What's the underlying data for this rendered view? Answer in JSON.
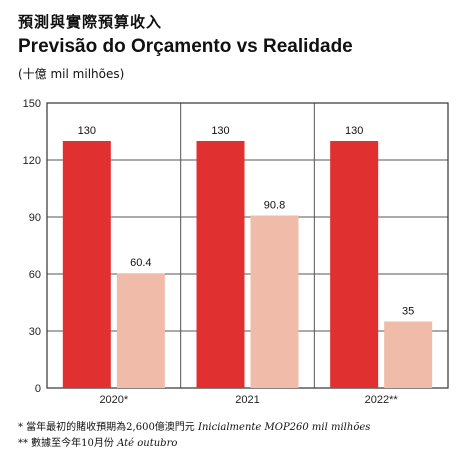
{
  "title_zh": "預測與實際預算收入",
  "title_pt": "Previsão do Orçamento vs Realidade",
  "unit": "(十億 mil milhões)",
  "notes": [
    {
      "zh": "* 當年最初的賭收預期為2,600億澳門元 ",
      "pt": "Inicialmente MOP260 mil milhões"
    },
    {
      "zh": "** 數據至今年10月份 ",
      "pt": "Até outubro"
    }
  ],
  "colors": {
    "forecast": "#e03130",
    "actual": "#f0bba8"
  },
  "chart_data": {
    "type": "bar",
    "categories": [
      "2020*",
      "2021",
      "2022**"
    ],
    "series": [
      {
        "values": [
          130,
          130,
          130
        ]
      },
      {
        "values": [
          60.4,
          90.8,
          35
        ]
      }
    ],
    "data_labels": [
      [
        "130",
        "130",
        "130"
      ],
      [
        "60.4",
        "90.8",
        "35"
      ]
    ],
    "yticks": [
      0,
      30,
      60,
      90,
      120,
      150
    ],
    "ylim": [
      0,
      150
    ],
    "grid": true
  }
}
